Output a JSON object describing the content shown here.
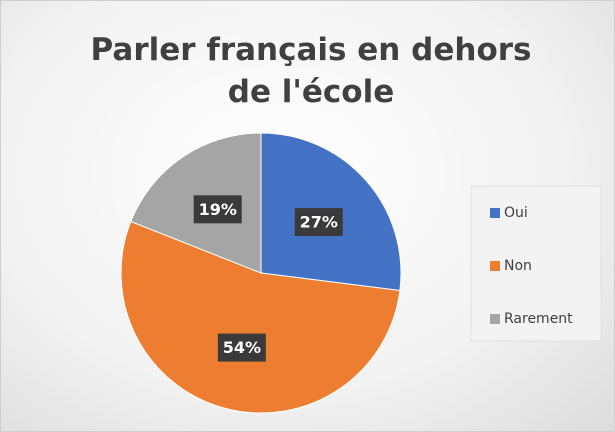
{
  "chart_data": {
    "type": "pie",
    "title": "Parler français en dehors de l'école",
    "categories": [
      "Oui",
      "Non",
      "Rarement"
    ],
    "values": [
      27,
      54,
      19
    ],
    "value_labels": [
      "27%",
      "54%",
      "19%"
    ],
    "colors": [
      "#4472c4",
      "#ed7d31",
      "#a5a5a5"
    ],
    "legend": "right"
  }
}
